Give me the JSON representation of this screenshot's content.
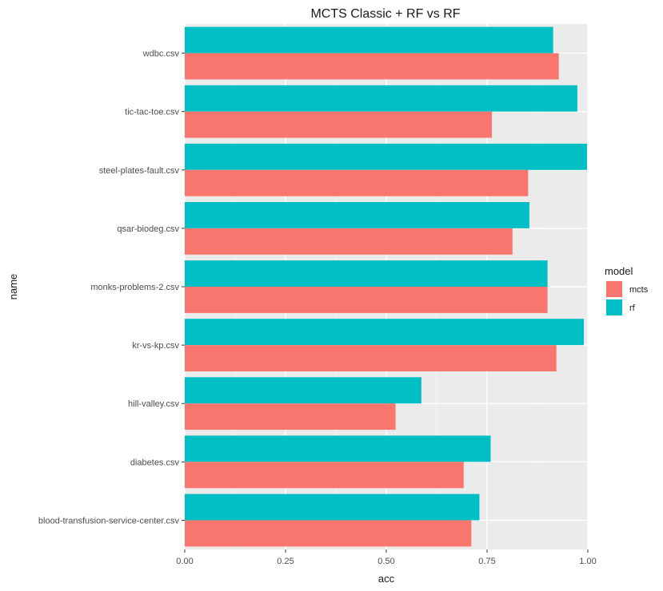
{
  "chart_data": {
    "type": "bar",
    "orientation": "horizontal",
    "title": "MCTS Classic + RF vs RF",
    "xlabel": "acc",
    "ylabel": "name",
    "xlim": [
      0,
      1
    ],
    "xticks": [
      "0.00",
      "0.25",
      "0.50",
      "0.75",
      "1.00"
    ],
    "xtick_values": [
      0,
      0.25,
      0.5,
      0.75,
      1.0
    ],
    "grid": true,
    "categories": [
      "wdbc.csv",
      "tic-tac-toe.csv",
      "steel-plates-fault.csv",
      "qsar-biodeg.csv",
      "monks-problems-2.csv",
      "kr-vs-kp.csv",
      "hill-valley.csv",
      "diabetes.csv",
      "blood-transfusion-service-center.csv"
    ],
    "series": [
      {
        "name": "mcts",
        "color": "#F8766D",
        "values": [
          0.928,
          0.762,
          0.852,
          0.813,
          0.9,
          0.922,
          0.523,
          0.692,
          0.711
        ]
      },
      {
        "name": "rf",
        "color": "#00BFC4",
        "values": [
          0.914,
          0.974,
          0.998,
          0.855,
          0.9,
          0.99,
          0.587,
          0.759,
          0.731
        ]
      }
    ],
    "legend": {
      "title": "model",
      "position": "right"
    }
  }
}
